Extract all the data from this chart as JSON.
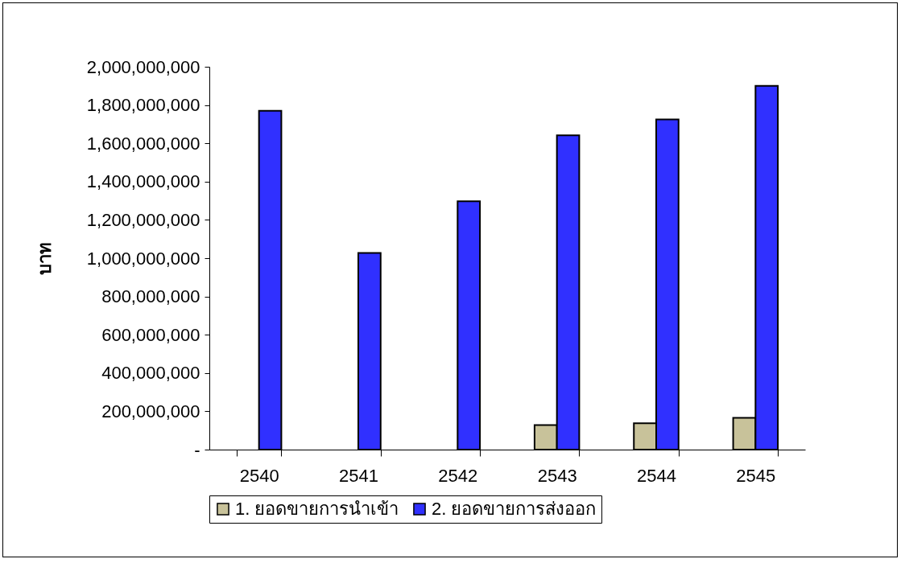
{
  "chart_data": {
    "type": "bar",
    "ylabel": "บาท",
    "categories": [
      "2540",
      "2541",
      "2542",
      "2543",
      "2544",
      "2545"
    ],
    "series": [
      {
        "name": "1. ยอดขายการนำเข้า",
        "color": "#c8c29a",
        "values": [
          null,
          null,
          null,
          128000000,
          138000000,
          166000000
        ]
      },
      {
        "name": "2. ยอดขายการส่งออก",
        "color": "#3030ff",
        "values": [
          1770000000,
          1027000000,
          1297000000,
          1642000000,
          1725000000,
          1900000000
        ]
      }
    ],
    "ylim": [
      0,
      2000000000
    ],
    "yticks": [
      {
        "value": 0,
        "label": "-"
      },
      {
        "value": 200000000,
        "label": "200,000,000"
      },
      {
        "value": 400000000,
        "label": "400,000,000"
      },
      {
        "value": 600000000,
        "label": "600,000,000"
      },
      {
        "value": 800000000,
        "label": "800,000,000"
      },
      {
        "value": 1000000000,
        "label": "1,000,000,000"
      },
      {
        "value": 1200000000,
        "label": "1,200,000,000"
      },
      {
        "value": 1400000000,
        "label": "1,400,000,000"
      },
      {
        "value": 1600000000,
        "label": "1,600,000,000"
      },
      {
        "value": 1800000000,
        "label": "1,800,000,000"
      },
      {
        "value": 2000000000,
        "label": "2,000,000,000"
      }
    ],
    "grid": false,
    "legend": "bottom"
  }
}
